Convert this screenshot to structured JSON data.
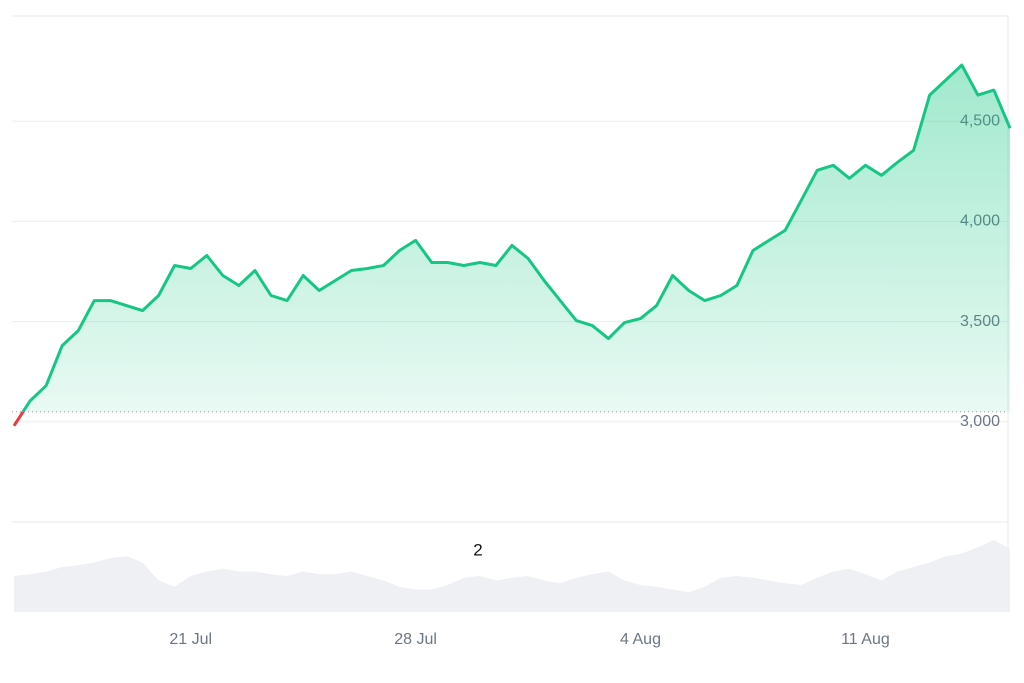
{
  "chart_data": {
    "type": "line",
    "categories": [
      null,
      null,
      null,
      null,
      null,
      null,
      null,
      null,
      null,
      null,
      null,
      "21 Jul",
      null,
      null,
      null,
      null,
      null,
      null,
      null,
      null,
      null,
      null,
      null,
      null,
      null,
      "28 Jul",
      null,
      null,
      null,
      null,
      null,
      null,
      null,
      null,
      null,
      null,
      null,
      null,
      null,
      "4 Aug",
      null,
      null,
      null,
      null,
      null,
      null,
      null,
      null,
      null,
      null,
      null,
      null,
      null,
      "11 Aug",
      null,
      null,
      null,
      null,
      null,
      null,
      null,
      null,
      null
    ],
    "values": [
      2980,
      3105,
      3180,
      3380,
      3455,
      3605,
      3605,
      3580,
      3555,
      3630,
      3780,
      3765,
      3830,
      3730,
      3680,
      3755,
      3630,
      3605,
      3730,
      3655,
      3705,
      3755,
      3765,
      3780,
      3855,
      3905,
      3795,
      3795,
      3780,
      3795,
      3780,
      3880,
      3815,
      3705,
      3605,
      3505,
      3480,
      3415,
      3495,
      3515,
      3580,
      3730,
      3655,
      3605,
      3630,
      3680,
      3855,
      3905,
      3955,
      4105,
      4255,
      4280,
      4215,
      4280,
      4230,
      4295,
      4355,
      4630,
      4705,
      4780,
      4630,
      4655,
      4465
    ],
    "up_color": "#16c784",
    "down_color": "#ea3943",
    "baseline": 3050,
    "ylim": [
      2500,
      5000
    ],
    "yticks": [
      {
        "value": 3000,
        "label": "3,000"
      },
      {
        "value": 3500,
        "label": "3,500"
      },
      {
        "value": 4000,
        "label": "4,000"
      },
      {
        "value": 4500,
        "label": "4,500"
      }
    ],
    "grid": true,
    "volume": [
      40,
      42,
      45,
      50,
      52,
      55,
      60,
      62,
      55,
      35,
      28,
      40,
      45,
      48,
      45,
      45,
      42,
      40,
      45,
      42,
      42,
      45,
      40,
      35,
      28,
      25,
      25,
      30,
      38,
      40,
      35,
      38,
      40,
      35,
      32,
      38,
      42,
      45,
      35,
      30,
      28,
      25,
      22,
      28,
      38,
      40,
      38,
      35,
      32,
      30,
      38,
      45,
      48,
      42,
      35,
      45,
      50,
      55,
      62,
      65,
      72,
      80,
      70
    ],
    "volume_ylim": [
      0,
      100
    ],
    "volume_color": "#eef0f3",
    "annotation": "2"
  }
}
